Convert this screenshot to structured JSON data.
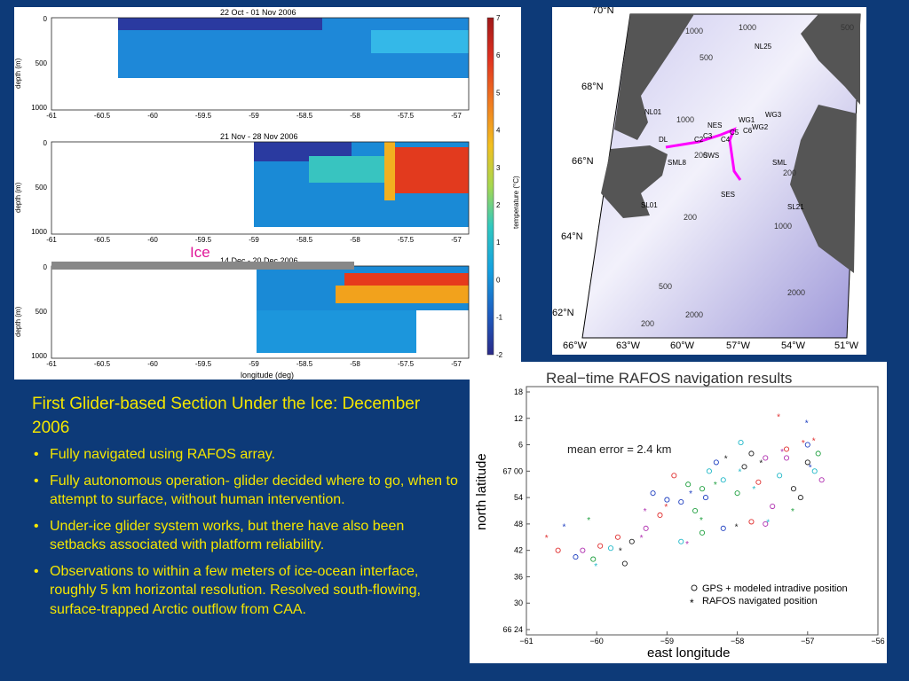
{
  "slide": {
    "heading": "First Glider-based Section Under the Ice: December 2006",
    "bullets": [
      "Fully navigated using RAFOS array.",
      "Fully autonomous operation- glider decided where to go, when to attempt to surface, without human intervention.",
      "Under-ice glider system works, but there have also been setbacks associated with platform reliability.",
      "Observations to within a few meters of ice-ocean interface, roughly 5 km horizontal resolution. Resolved south-flowing, surface-trapped Arctic outflow from CAA."
    ]
  },
  "colors": {
    "background": "#0d3a78",
    "bullet_text": "#f4e600",
    "ice_label": "#e0189a",
    "track": "#ff00ff"
  },
  "sections": {
    "titles": [
      "22 Oct - 01 Nov 2006",
      "21 Nov - 28 Nov 2006",
      "14 Dec - 20 Dec 2006"
    ],
    "ice_label": "Ice",
    "ylabel": "depth (m)",
    "yticks": [
      "0",
      "500",
      "1000"
    ],
    "xticks": [
      "-61",
      "-60.5",
      "-60",
      "-59.5",
      "-59",
      "-58.5",
      "-58",
      "-57.5",
      "-57"
    ],
    "xlabel": "longitude (deg)",
    "colorbar_label": "temperature (°C)",
    "colorbar_ticks": [
      "7",
      "6",
      "5",
      "4",
      "3",
      "2",
      "1",
      "0",
      "-1",
      "-2"
    ]
  },
  "map": {
    "lat_labels": [
      "70°N",
      "68°N",
      "66°N",
      "64°N",
      "62°N"
    ],
    "lon_labels": [
      "66°W",
      "63°W",
      "60°W",
      "57°W",
      "54°W",
      "51°W"
    ],
    "contour_labels": [
      "1000",
      "500",
      "1000",
      "200",
      "200",
      "500",
      "1000",
      "2000",
      "500",
      "200",
      "2000",
      "200",
      "1000"
    ],
    "moorings": [
      "NL25",
      "NL01",
      "NES",
      "WG1",
      "WG2",
      "WG3",
      "C3",
      "C2",
      "C4",
      "C5",
      "C6",
      "SWS",
      "SML",
      "SML8",
      "SES",
      "SL01",
      "SL21",
      "DL"
    ]
  },
  "chart_data": {
    "type": "scatter",
    "title": "Real−time RAFOS navigation results",
    "xlabel": "east longitude",
    "ylabel": "north latitude",
    "x_ticks": [
      "−61",
      "−60",
      "−59",
      "−58",
      "−57",
      "−56"
    ],
    "y_ticks": [
      "66 24",
      "30",
      "36",
      "42",
      "48",
      "54",
      "67 00",
      "6",
      "12",
      "18"
    ],
    "annotation": "mean error = 2.4 km",
    "legend": [
      "GPS + modeled intradive position",
      "RAFOS navigated position"
    ],
    "xlim": [
      -61,
      -56
    ],
    "series": [
      {
        "name": "GPS + modeled intradive position",
        "marker": "circle",
        "points": [
          [
            -60.55,
            42
          ],
          [
            -60.3,
            40.5
          ],
          [
            -60.05,
            40
          ],
          [
            -59.8,
            42.5
          ],
          [
            -59.5,
            44
          ],
          [
            -59.3,
            47
          ],
          [
            -59.1,
            50
          ],
          [
            -58.8,
            53
          ],
          [
            -58.5,
            56
          ],
          [
            -58.2,
            58
          ],
          [
            -57.9,
            61
          ],
          [
            -57.6,
            63
          ],
          [
            -57.3,
            65
          ],
          [
            -57.0,
            66
          ],
          [
            -56.85,
            64
          ],
          [
            -56.9,
            60
          ],
          [
            -57.2,
            56
          ],
          [
            -57.5,
            52
          ],
          [
            -57.8,
            48.5
          ],
          [
            -58.2,
            47
          ],
          [
            -58.5,
            46
          ],
          [
            -58.8,
            44
          ],
          [
            -59.6,
            39
          ],
          [
            -60.2,
            42
          ],
          [
            -59.95,
            43
          ],
          [
            -59.0,
            53.5
          ],
          [
            -58.7,
            57
          ],
          [
            -58.4,
            60
          ],
          [
            -57.8,
            64
          ],
          [
            -57.3,
            63
          ],
          [
            -58.9,
            59
          ],
          [
            -58.3,
            62
          ],
          [
            -58.6,
            51
          ],
          [
            -57.4,
            59
          ],
          [
            -57.1,
            54
          ],
          [
            -57.6,
            48
          ],
          [
            -59.7,
            45
          ],
          [
            -59.2,
            55
          ],
          [
            -58.0,
            55
          ],
          [
            -57.95,
            66.5
          ],
          [
            -57.0,
            62
          ],
          [
            -56.8,
            58
          ],
          [
            -57.7,
            57.5
          ],
          [
            -58.45,
            54
          ]
        ]
      },
      {
        "name": "RAFOS navigated position",
        "marker": "star",
        "points": [
          [
            -60.7,
            45
          ],
          [
            -60.45,
            47.5
          ],
          [
            -60.1,
            49
          ],
          [
            -60.0,
            38.5
          ],
          [
            -59.65,
            42
          ],
          [
            -59.35,
            45
          ],
          [
            -59.0,
            52
          ],
          [
            -58.65,
            55
          ],
          [
            -58.3,
            57
          ],
          [
            -57.95,
            60
          ],
          [
            -57.65,
            62
          ],
          [
            -57.35,
            64.5
          ],
          [
            -57.05,
            66.5
          ],
          [
            -56.95,
            61
          ],
          [
            -57.2,
            51
          ],
          [
            -57.55,
            48.5
          ],
          [
            -58.0,
            47.5
          ],
          [
            -58.7,
            43.5
          ],
          [
            -57.4,
            72.5
          ],
          [
            -57.0,
            71
          ],
          [
            -58.5,
            49
          ],
          [
            -57.75,
            56
          ],
          [
            -58.15,
            63
          ],
          [
            -59.3,
            51
          ],
          [
            -56.9,
            67
          ]
        ]
      }
    ]
  }
}
